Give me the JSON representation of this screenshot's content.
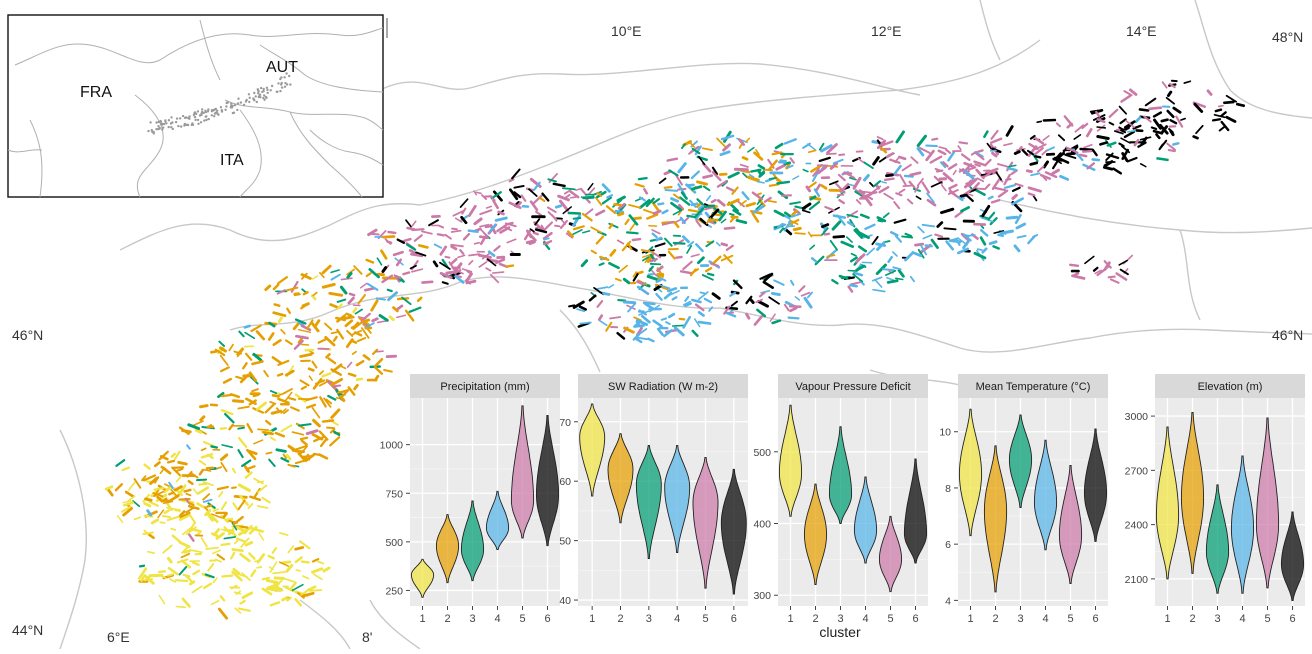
{
  "map": {
    "lon_labels": [
      "6°E",
      "8'",
      "10°E",
      "12°E",
      "14°E"
    ],
    "lat_labels_left": [
      "46°N",
      "44°N"
    ],
    "lat_labels_right": [
      "48°N",
      "46°N"
    ],
    "cluster_colors": [
      "#f0e442",
      "#e69f00",
      "#009e73",
      "#56b4e9",
      "#cc79a7",
      "#000000"
    ]
  },
  "inset": {
    "countries": [
      "FRA",
      "AUT",
      "ITA"
    ]
  },
  "panels_xlabel": "cluster",
  "chart_data": [
    {
      "type": "violin",
      "title": "Precipitation (mm)",
      "categories": [
        "1",
        "2",
        "3",
        "4",
        "5",
        "6"
      ],
      "yticks": [
        250,
        500,
        750,
        1000
      ],
      "ylim": [
        170,
        1240
      ],
      "distributions": [
        {
          "median": 330,
          "min": 215,
          "max": 410
        },
        {
          "median": 480,
          "min": 290,
          "max": 640
        },
        {
          "median": 460,
          "min": 300,
          "max": 710
        },
        {
          "median": 570,
          "min": 460,
          "max": 760
        },
        {
          "median": 710,
          "min": 520,
          "max": 1200
        },
        {
          "median": 740,
          "min": 480,
          "max": 1150
        }
      ]
    },
    {
      "type": "violin",
      "title": "SW Radiation (W m-2)",
      "categories": [
        "1",
        "2",
        "3",
        "4",
        "5",
        "6"
      ],
      "yticks": [
        40,
        50,
        60,
        70
      ],
      "ylim": [
        39,
        74
      ],
      "distributions": [
        {
          "median": 67.5,
          "min": 57.5,
          "max": 73
        },
        {
          "median": 62,
          "min": 53,
          "max": 68
        },
        {
          "median": 59.5,
          "min": 47,
          "max": 66
        },
        {
          "median": 59,
          "min": 48,
          "max": 66
        },
        {
          "median": 56.5,
          "min": 42,
          "max": 64
        },
        {
          "median": 53,
          "min": 41,
          "max": 62
        }
      ]
    },
    {
      "type": "violin",
      "title": "Vapour Pressure Deficit",
      "categories": [
        "1",
        "2",
        "3",
        "4",
        "5",
        "6"
      ],
      "yticks": [
        300,
        400,
        500
      ],
      "ylim": [
        285,
        575
      ],
      "distributions": [
        {
          "median": 470,
          "min": 410,
          "max": 565
        },
        {
          "median": 385,
          "min": 315,
          "max": 455
        },
        {
          "median": 440,
          "min": 400,
          "max": 535
        },
        {
          "median": 390,
          "min": 345,
          "max": 465
        },
        {
          "median": 350,
          "min": 305,
          "max": 410
        },
        {
          "median": 385,
          "min": 345,
          "max": 490
        }
      ]
    },
    {
      "type": "violin",
      "title": "Mean Temperature (°C)",
      "categories": [
        "1",
        "2",
        "3",
        "4",
        "5",
        "6"
      ],
      "yticks": [
        4,
        6,
        8,
        10
      ],
      "ylim": [
        3.8,
        11.2
      ],
      "distributions": [
        {
          "median": 8.5,
          "min": 6.3,
          "max": 10.8
        },
        {
          "median": 7.2,
          "min": 4.3,
          "max": 9.5
        },
        {
          "median": 9,
          "min": 7.3,
          "max": 10.6
        },
        {
          "median": 7.5,
          "min": 5.8,
          "max": 9.7
        },
        {
          "median": 6.3,
          "min": 4.6,
          "max": 8.8
        },
        {
          "median": 7.8,
          "min": 6.1,
          "max": 10.1
        }
      ]
    },
    {
      "type": "violin",
      "title": "Elevation (m)",
      "categories": [
        "1",
        "2",
        "3",
        "4",
        "5",
        "6"
      ],
      "yticks": [
        2100,
        2400,
        2700,
        3000
      ],
      "ylim": [
        1950,
        3100
      ],
      "distributions": [
        {
          "median": 2450,
          "min": 2100,
          "max": 2940
        },
        {
          "median": 2550,
          "min": 2130,
          "max": 3020
        },
        {
          "median": 2250,
          "min": 2020,
          "max": 2620
        },
        {
          "median": 2380,
          "min": 2020,
          "max": 2780
        },
        {
          "median": 2400,
          "min": 2050,
          "max": 2990
        },
        {
          "median": 2180,
          "min": 1980,
          "max": 2470
        }
      ]
    }
  ]
}
